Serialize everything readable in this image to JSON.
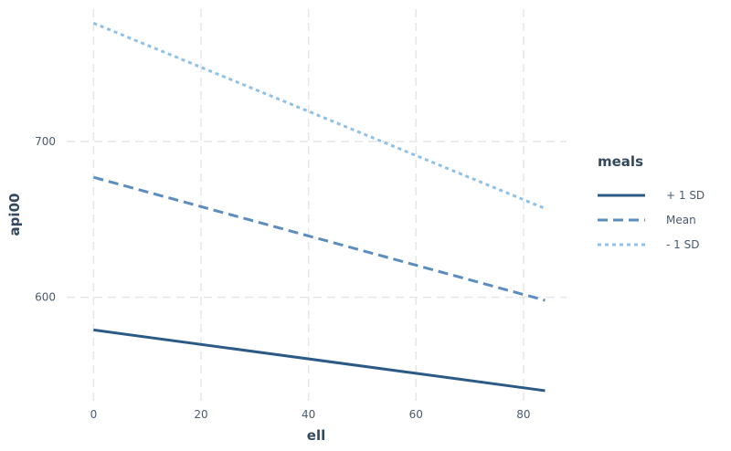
{
  "chart_data": {
    "type": "line",
    "title": "",
    "xlabel": "ell",
    "ylabel": "api00",
    "xlim": [
      -5,
      88
    ],
    "ylim": [
      530,
      785
    ],
    "xticks": [
      0,
      20,
      40,
      60,
      80
    ],
    "yticks": [
      600,
      700
    ],
    "grid": true,
    "legend": {
      "title": "meals",
      "position": "right"
    },
    "x": [
      0,
      84
    ],
    "series": [
      {
        "name": "+ 1 SD",
        "values": [
          579,
          540
        ],
        "color": "#2c5a87",
        "dash": "solid"
      },
      {
        "name": "Mean",
        "values": [
          677,
          598
        ],
        "color": "#5b8dbf",
        "dash": "long-dash"
      },
      {
        "name": "- 1 SD",
        "values": [
          776,
          657
        ],
        "color": "#8fc1e6",
        "dash": "dotted"
      }
    ]
  }
}
